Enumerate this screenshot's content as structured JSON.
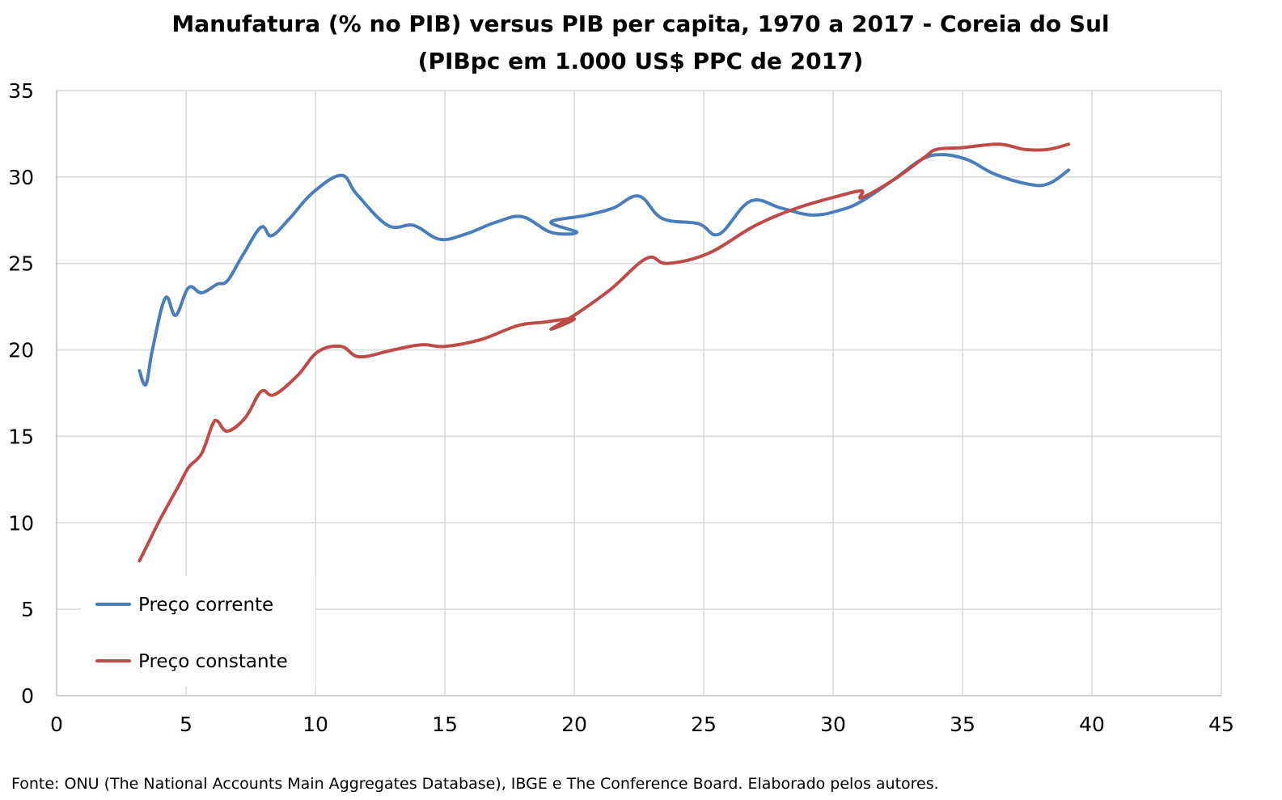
{
  "chart_data": {
    "type": "line",
    "title": "Manufatura (% no PIB) versus PIB per capita, 1970 a 2017 - Coreia do Sul",
    "subtitle": "(PIBpc em 1.000 US$ PPC de 2017)",
    "xlabel": "",
    "ylabel": "",
    "xlim": [
      0,
      45
    ],
    "ylim": [
      0,
      35
    ],
    "x_ticks": [
      0,
      5,
      10,
      15,
      20,
      25,
      30,
      35,
      40,
      45
    ],
    "y_ticks": [
      0,
      5,
      10,
      15,
      20,
      25,
      30,
      35
    ],
    "grid": true,
    "legend_position": "bottom-left",
    "series": [
      {
        "name": "Preço corrente",
        "color": "#4a7ebb",
        "points": [
          [
            3.2,
            18.8
          ],
          [
            3.45,
            18.0
          ],
          [
            3.7,
            20.0
          ],
          [
            4.2,
            23.0
          ],
          [
            4.6,
            22.0
          ],
          [
            5.1,
            23.6
          ],
          [
            5.6,
            23.3
          ],
          [
            6.2,
            23.8
          ],
          [
            6.6,
            24.0
          ],
          [
            7.2,
            25.5
          ],
          [
            7.9,
            27.1
          ],
          [
            8.3,
            26.6
          ],
          [
            9.0,
            27.6
          ],
          [
            9.9,
            29.1
          ],
          [
            11.0,
            30.1
          ],
          [
            11.6,
            29.0
          ],
          [
            12.8,
            27.2
          ],
          [
            13.8,
            27.2
          ],
          [
            14.8,
            26.4
          ],
          [
            15.8,
            26.7
          ],
          [
            17.0,
            27.4
          ],
          [
            18.0,
            27.7
          ],
          [
            19.1,
            26.8
          ],
          [
            20.1,
            26.8
          ],
          [
            19.1,
            27.4
          ],
          [
            20.5,
            27.8
          ],
          [
            21.5,
            28.2
          ],
          [
            22.5,
            28.9
          ],
          [
            23.4,
            27.6
          ],
          [
            24.8,
            27.3
          ],
          [
            25.6,
            26.7
          ],
          [
            26.8,
            28.6
          ],
          [
            28.0,
            28.2
          ],
          [
            29.2,
            27.8
          ],
          [
            30.3,
            28.1
          ],
          [
            31.1,
            28.6
          ],
          [
            32.3,
            29.8
          ],
          [
            33.4,
            31.0
          ],
          [
            34.2,
            31.3
          ],
          [
            35.2,
            31.0
          ],
          [
            36.2,
            30.2
          ],
          [
            37.5,
            29.6
          ],
          [
            38.3,
            29.6
          ],
          [
            39.1,
            30.4
          ]
        ]
      },
      {
        "name": "Preço constante",
        "color": "#be4b48",
        "points": [
          [
            3.2,
            7.8
          ],
          [
            3.5,
            8.7
          ],
          [
            4.0,
            10.2
          ],
          [
            4.7,
            12.1
          ],
          [
            5.1,
            13.2
          ],
          [
            5.6,
            14.0
          ],
          [
            6.0,
            15.6
          ],
          [
            6.2,
            15.9
          ],
          [
            6.6,
            15.3
          ],
          [
            7.3,
            16.1
          ],
          [
            7.9,
            17.6
          ],
          [
            8.4,
            17.4
          ],
          [
            9.3,
            18.5
          ],
          [
            10.1,
            19.9
          ],
          [
            11.0,
            20.2
          ],
          [
            11.7,
            19.6
          ],
          [
            13.0,
            20.0
          ],
          [
            14.1,
            20.3
          ],
          [
            15.0,
            20.2
          ],
          [
            16.4,
            20.6
          ],
          [
            17.8,
            21.4
          ],
          [
            18.8,
            21.6
          ],
          [
            20.0,
            21.8
          ],
          [
            19.1,
            21.2
          ],
          [
            20.1,
            22.1
          ],
          [
            21.4,
            23.5
          ],
          [
            22.8,
            25.3
          ],
          [
            23.6,
            25.0
          ],
          [
            25.2,
            25.6
          ],
          [
            27.0,
            27.2
          ],
          [
            28.6,
            28.2
          ],
          [
            30.2,
            28.9
          ],
          [
            31.1,
            29.2
          ],
          [
            31.1,
            28.8
          ],
          [
            32.3,
            29.8
          ],
          [
            33.5,
            31.1
          ],
          [
            34.0,
            31.6
          ],
          [
            35.0,
            31.7
          ],
          [
            36.4,
            31.9
          ],
          [
            37.4,
            31.6
          ],
          [
            38.3,
            31.6
          ],
          [
            39.1,
            31.9
          ]
        ]
      }
    ],
    "source": "Fonte: ONU (The National Accounts Main Aggregates Database), IBGE e The Conference Board. Elaborado pelos autores."
  }
}
